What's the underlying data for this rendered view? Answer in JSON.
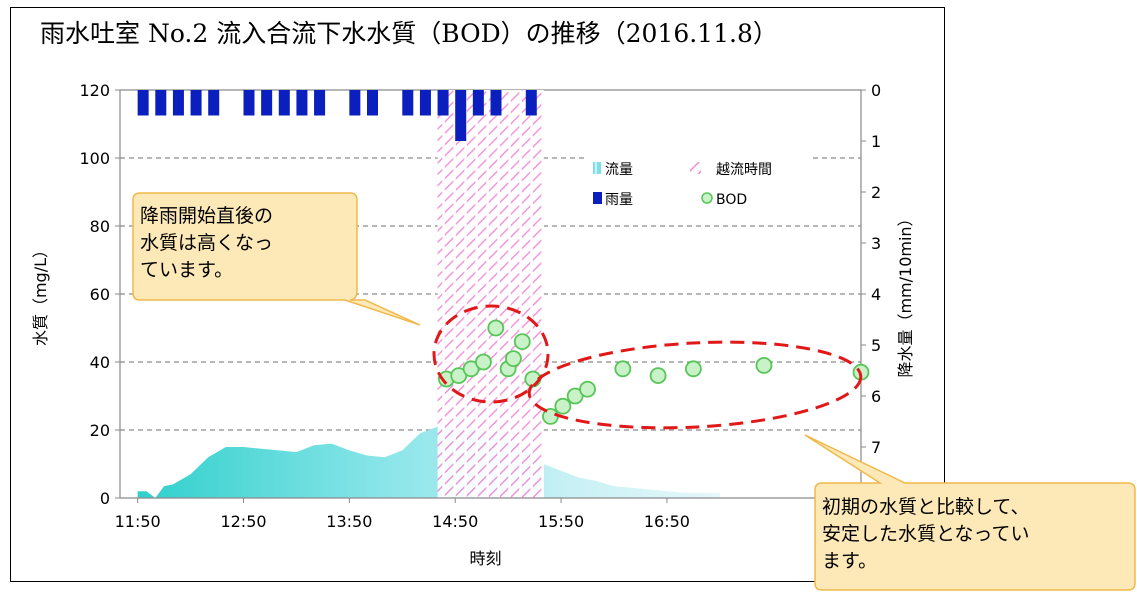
{
  "title": "雨水吐室 No.2 流入合流下水水質（BOD）の推移（2016.11.8）",
  "chart_data": {
    "type": "combo",
    "title": "雨水吐室 No.2 流入合流下水水質（BOD）の推移（2016.11.8）",
    "xlabel": "時刻",
    "ylabel_left": "水質（mg/L）",
    "ylabel_right": "降水量（mm/10min）",
    "x_ticks": [
      "11:50",
      "12:50",
      "13:50",
      "14:50",
      "15:50",
      "16:50"
    ],
    "ylim_left": [
      0,
      120
    ],
    "y_ticks_left": [
      0,
      20,
      40,
      60,
      80,
      100,
      120
    ],
    "ylim_right_inverted": [
      0,
      8
    ],
    "y_ticks_right": [
      0,
      1,
      2,
      3,
      4,
      5,
      6,
      7
    ],
    "grid": "horizontal dashed",
    "legend": {
      "placement": "top-right",
      "entries": [
        "流量",
        "越流時間",
        "雨量",
        "BOD"
      ]
    },
    "colors": {
      "rain": "#0a1fbd",
      "flow": "#3fd6d6",
      "overflow": "#f08ad8",
      "bod_fill": "#c9f2c9",
      "bod_stroke": "#58c558",
      "ellipse": "#e01818",
      "callout_fill": "#fde9b8",
      "callout_stroke": "#f0b84a"
    },
    "series": [
      {
        "name": "雨量",
        "unit": "mm/10min",
        "x": [
          "11:50",
          "12:00",
          "12:10",
          "12:20",
          "12:30",
          "12:50",
          "13:00",
          "13:10",
          "13:20",
          "13:30",
          "13:50",
          "14:00",
          "14:20",
          "14:30",
          "14:40",
          "14:50",
          "15:00",
          "15:10",
          "15:30"
        ],
        "values": [
          0.5,
          0.5,
          0.5,
          0.5,
          0.5,
          0.5,
          0.5,
          0.5,
          0.5,
          0.5,
          0.5,
          0.5,
          0.5,
          0.5,
          0.5,
          1.0,
          0.5,
          0.5,
          0.5
        ]
      },
      {
        "name": "流量",
        "x": [
          "11:50",
          "11:55",
          "12:00",
          "12:05",
          "12:10",
          "12:20",
          "12:30",
          "12:40",
          "12:50",
          "13:00",
          "13:10",
          "13:20",
          "13:30",
          "13:40",
          "13:50",
          "14:00",
          "14:10",
          "14:20",
          "14:30",
          "14:40",
          "14:50",
          "15:00",
          "15:10",
          "15:20",
          "15:30",
          "15:40",
          "15:50",
          "16:00",
          "16:10",
          "16:20",
          "16:30",
          "16:40",
          "16:50",
          "17:00",
          "17:10",
          "17:20"
        ],
        "values": [
          2,
          2,
          0,
          3.5,
          4,
          7,
          12,
          15,
          15,
          14.5,
          14,
          13.5,
          15.5,
          16,
          14,
          12.5,
          12,
          14,
          19,
          21,
          20,
          20,
          19.5,
          19,
          14,
          10,
          8,
          6,
          5,
          3.5,
          3,
          2.5,
          2,
          1.5,
          1.5,
          1.5
        ]
      },
      {
        "name": "越流時間",
        "x_start": "14:40",
        "x_end": "15:40"
      },
      {
        "name": "BOD",
        "x": [
          "14:45",
          "14:52",
          "14:59",
          "15:06",
          "15:13",
          "15:20",
          "15:23",
          "15:28",
          "15:34",
          "15:44",
          "15:51",
          "15:58",
          "16:05",
          "16:25",
          "16:45",
          "17:05",
          "17:45",
          "18:40"
        ],
        "values": [
          35,
          36,
          38,
          40,
          50,
          38,
          41,
          46,
          35,
          24,
          27,
          30,
          32,
          38,
          36,
          38,
          39,
          37
        ]
      }
    ],
    "annotations": [
      "降雨開始直後の水質は高くなっています。",
      "初期の水質と比較して、安定した水質となっています。"
    ]
  },
  "callouts": {
    "left": [
      "降雨開始直後の",
      "水質は高くなっ",
      "ています。"
    ],
    "right": [
      "初期の水質と比較して、",
      "安定した水質となってい",
      "ます。"
    ]
  }
}
